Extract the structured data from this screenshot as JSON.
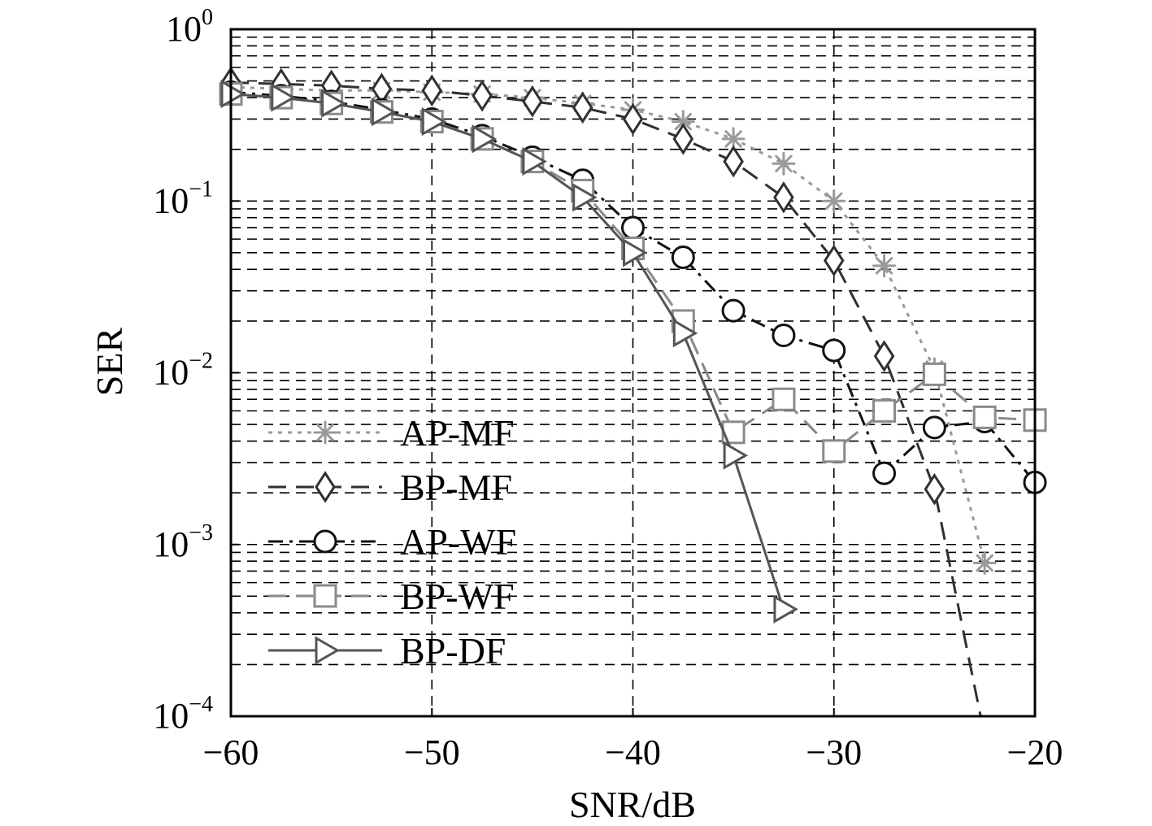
{
  "chart_data": {
    "type": "line",
    "title": "",
    "xlabel": "SNR/dB",
    "ylabel": "SER",
    "xlim": [
      -60,
      -20
    ],
    "ylim": [
      0.0001,
      1
    ],
    "yscale": "log",
    "grid": true,
    "legend_position": "bottom-left",
    "x_ticks": [
      -60,
      -50,
      -40,
      -30,
      -20
    ],
    "x_tick_labels": [
      "−60",
      "−50",
      "−40",
      "−30",
      "−20"
    ],
    "y_ticks": [
      {
        "value": 1,
        "base": "10",
        "exp": "0"
      },
      {
        "value": 0.1,
        "base": "10",
        "exp": "−1"
      },
      {
        "value": 0.01,
        "base": "10",
        "exp": "−2"
      },
      {
        "value": 0.001,
        "base": "10",
        "exp": "−3"
      },
      {
        "value": 0.0001,
        "base": "10",
        "exp": "−4"
      }
    ],
    "series": [
      {
        "name": "AP-MF",
        "color": "#9a9a9a",
        "dash": "dotted",
        "marker": "star",
        "x": [
          -60,
          -57.5,
          -55,
          -52.5,
          -50,
          -47.5,
          -45,
          -42.5,
          -40,
          -37.5,
          -35,
          -32.5,
          -30,
          -27.5,
          -25,
          -22.5
        ],
        "values": [
          0.46,
          0.45,
          0.44,
          0.44,
          0.43,
          0.42,
          0.4,
          0.37,
          0.34,
          0.29,
          0.23,
          0.165,
          0.1,
          0.042,
          0.0105,
          0.00078
        ]
      },
      {
        "name": "BP-MF",
        "color": "#303030",
        "dash": "dashed",
        "marker": "diamond",
        "x": [
          -60,
          -57.5,
          -55,
          -52.5,
          -50,
          -47.5,
          -45,
          -42.5,
          -40,
          -37.5,
          -35,
          -32.5,
          -30,
          -27.5,
          -25,
          -22.7
        ],
        "values": [
          0.49,
          0.48,
          0.47,
          0.45,
          0.44,
          0.41,
          0.38,
          0.35,
          0.3,
          0.23,
          0.17,
          0.105,
          0.045,
          0.0125,
          0.0021,
          0.0001
        ]
      },
      {
        "name": "AP-WF",
        "color": "#111111",
        "dash": "dashdot",
        "marker": "circle",
        "x": [
          -60,
          -57.5,
          -55,
          -52.5,
          -50,
          -47.5,
          -45,
          -42.5,
          -40,
          -37.5,
          -35,
          -32.5,
          -30,
          -27.5,
          -25,
          -22.5,
          -20
        ],
        "values": [
          0.43,
          0.41,
          0.38,
          0.34,
          0.3,
          0.24,
          0.18,
          0.132,
          0.07,
          0.047,
          0.023,
          0.0165,
          0.0135,
          0.0026,
          0.0048,
          0.0052,
          0.0023
        ]
      },
      {
        "name": "BP-WF",
        "color": "#8a8a8a",
        "dash": "dashed",
        "marker": "square",
        "x": [
          -60,
          -57.5,
          -55,
          -52.5,
          -50,
          -47.5,
          -45,
          -42.5,
          -40,
          -37.5,
          -35,
          -32.5,
          -30,
          -27.5,
          -25,
          -22.5,
          -20
        ],
        "values": [
          0.42,
          0.4,
          0.37,
          0.33,
          0.29,
          0.23,
          0.17,
          0.115,
          0.053,
          0.02,
          0.0045,
          0.007,
          0.0035,
          0.006,
          0.0098,
          0.0055,
          0.0053
        ]
      },
      {
        "name": "BP-DF",
        "color": "#555555",
        "dash": "solid",
        "marker": "triangle-right",
        "x": [
          -60,
          -57.5,
          -55,
          -52.5,
          -50,
          -47.5,
          -45,
          -42.5,
          -40,
          -37.5,
          -35,
          -32.5
        ],
        "values": [
          0.42,
          0.4,
          0.37,
          0.33,
          0.29,
          0.23,
          0.17,
          0.105,
          0.05,
          0.017,
          0.0033,
          0.00042
        ]
      }
    ]
  }
}
